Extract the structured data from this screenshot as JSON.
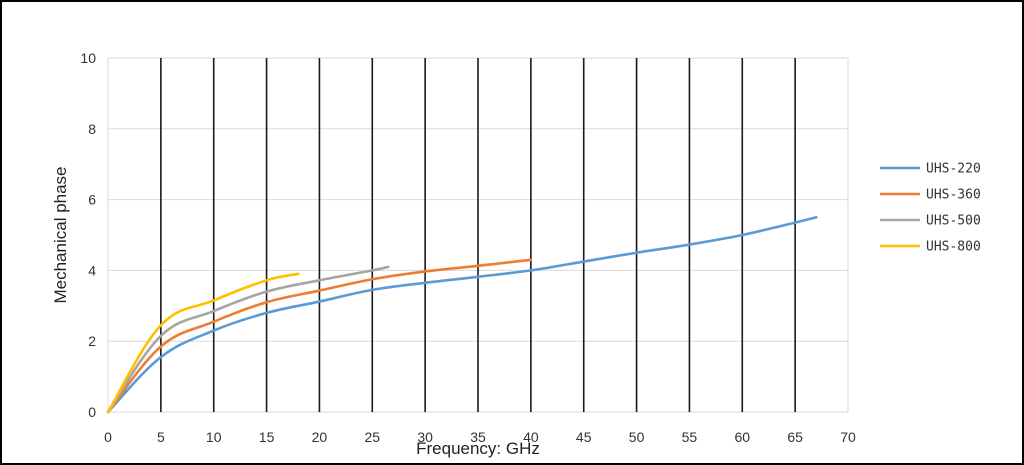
{
  "chart_data": {
    "type": "line",
    "title": "",
    "xlabel": "Frequency:  GHz",
    "ylabel": "Mechanical phase",
    "xlim": [
      0,
      70
    ],
    "ylim": [
      0,
      10
    ],
    "xticks": [
      0,
      5,
      10,
      15,
      20,
      25,
      30,
      35,
      40,
      45,
      50,
      55,
      60,
      65,
      70
    ],
    "yticks": [
      0,
      2,
      4,
      6,
      8,
      10
    ],
    "vertical_gridlines": true,
    "horizontal_gridlines": true,
    "legend_position": "right",
    "series": [
      {
        "name": "UHS-220",
        "color": "#5B9BD5",
        "points": [
          [
            0,
            0
          ],
          [
            5,
            1.55
          ],
          [
            10,
            2.3
          ],
          [
            15,
            2.8
          ],
          [
            20,
            3.12
          ],
          [
            25,
            3.45
          ],
          [
            30,
            3.65
          ],
          [
            35,
            3.82
          ],
          [
            40,
            4.0
          ],
          [
            45,
            4.25
          ],
          [
            50,
            4.5
          ],
          [
            55,
            4.73
          ],
          [
            60,
            5.0
          ],
          [
            65,
            5.35
          ],
          [
            67,
            5.5
          ]
        ]
      },
      {
        "name": "UHS-360",
        "color": "#ED7D31",
        "points": [
          [
            0,
            0
          ],
          [
            5,
            1.85
          ],
          [
            10,
            2.55
          ],
          [
            15,
            3.1
          ],
          [
            20,
            3.43
          ],
          [
            25,
            3.75
          ],
          [
            30,
            3.97
          ],
          [
            35,
            4.13
          ],
          [
            40,
            4.3
          ]
        ]
      },
      {
        "name": "UHS-500",
        "color": "#A5A5A5",
        "points": [
          [
            0,
            0
          ],
          [
            5,
            2.15
          ],
          [
            10,
            2.85
          ],
          [
            15,
            3.4
          ],
          [
            20,
            3.72
          ],
          [
            25,
            4.0
          ],
          [
            26.5,
            4.1
          ]
        ]
      },
      {
        "name": "UHS-800",
        "color": "#FFC000",
        "points": [
          [
            0,
            0
          ],
          [
            5,
            2.45
          ],
          [
            10,
            3.15
          ],
          [
            15,
            3.72
          ],
          [
            18,
            3.9
          ]
        ]
      }
    ]
  }
}
